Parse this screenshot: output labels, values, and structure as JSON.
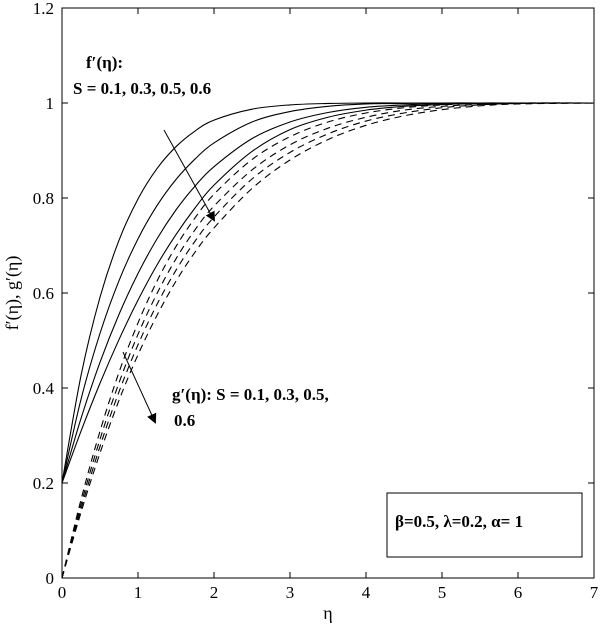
{
  "chart_data": {
    "type": "line",
    "xlabel": "η",
    "ylabel": "f′(η), g′(η)",
    "xlim": [
      0,
      7
    ],
    "ylim": [
      0,
      1.2
    ],
    "xticks": [
      "0",
      "1",
      "2",
      "3",
      "4",
      "5",
      "6",
      "7"
    ],
    "yticks": [
      "0",
      "0.2",
      "0.4",
      "0.6",
      "0.8",
      "1",
      "1.2"
    ],
    "grid": false,
    "annotations": {
      "f_title": "f′(η):",
      "f_values": "S = 0.1, 0.3, 0.5, 0.6",
      "g_text_line1": "g′(η): S = 0.1, 0.3, 0.5,",
      "g_text_line2": "0.6",
      "params": "β=0.5, λ=0.2, α= 1"
    },
    "x": [
      0,
      0.25,
      0.5,
      0.75,
      1,
      1.25,
      1.5,
      1.75,
      2,
      2.5,
      3,
      3.5,
      4,
      4.5,
      5,
      5.5,
      6,
      7
    ],
    "f_series": [
      {
        "values": [
          0.2,
          0.426,
          0.591,
          0.711,
          0.798,
          0.862,
          0.908,
          0.941,
          0.964,
          0.987,
          0.996,
          0.999,
          1.0,
          1.0,
          1.0,
          1.0,
          1.0,
          1.0
        ]
      },
      {
        "values": [
          0.2,
          0.376,
          0.515,
          0.626,
          0.714,
          0.784,
          0.839,
          0.882,
          0.916,
          0.96,
          0.982,
          0.993,
          0.998,
          0.999,
          1.0,
          1.0,
          1.0,
          1.0
        ]
      },
      {
        "values": [
          0.2,
          0.336,
          0.454,
          0.555,
          0.641,
          0.714,
          0.775,
          0.825,
          0.866,
          0.925,
          0.96,
          0.98,
          0.991,
          0.996,
          0.999,
          1.0,
          1.0,
          1.0
        ]
      },
      {
        "values": [
          0.2,
          0.309,
          0.41,
          0.502,
          0.585,
          0.659,
          0.723,
          0.779,
          0.827,
          0.898,
          0.944,
          0.97,
          0.985,
          0.993,
          0.997,
          0.999,
          1.0,
          1.0
        ]
      }
    ],
    "g_series": [
      {
        "values": [
          0.0,
          0.165,
          0.309,
          0.433,
          0.537,
          0.625,
          0.698,
          0.758,
          0.808,
          0.881,
          0.929,
          0.96,
          0.979,
          0.99,
          0.996,
          0.999,
          1.0,
          1.0
        ]
      },
      {
        "values": [
          0.0,
          0.155,
          0.292,
          0.411,
          0.513,
          0.599,
          0.672,
          0.733,
          0.783,
          0.859,
          0.912,
          0.947,
          0.97,
          0.985,
          0.993,
          0.997,
          0.999,
          1.0
        ]
      },
      {
        "values": [
          0.0,
          0.146,
          0.277,
          0.392,
          0.491,
          0.576,
          0.648,
          0.709,
          0.76,
          0.84,
          0.896,
          0.935,
          0.962,
          0.979,
          0.99,
          0.996,
          0.999,
          1.0
        ]
      },
      {
        "values": [
          0.0,
          0.138,
          0.263,
          0.374,
          0.47,
          0.553,
          0.625,
          0.686,
          0.737,
          0.82,
          0.88,
          0.923,
          0.953,
          0.973,
          0.986,
          0.994,
          0.998,
          1.0
        ]
      }
    ]
  }
}
